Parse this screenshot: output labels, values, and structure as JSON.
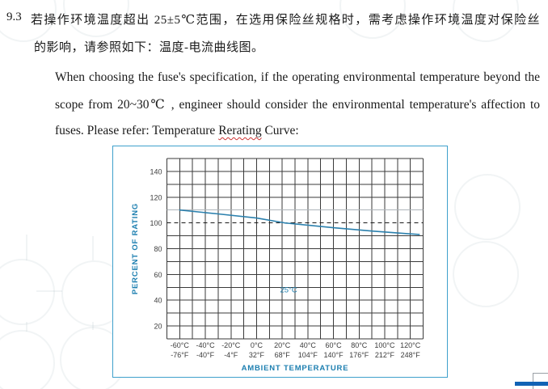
{
  "document": {
    "section_number": "9.3",
    "zh_line1": "若操作环境温度超出 25±5℃范围，在选用保险丝规格时，需考虑操作环境温度对保险丝",
    "zh_line2": "的影响，请参照如下：温度-电流曲线图。",
    "en_line1": "When choosing the fuse's specification, if the operating environmental temperature beyond the",
    "en_line2": "scope from 20~30℃ , engineer should consider the environmental temperature's affection to",
    "en_line3_prefix": "fuses. Please refer: Temperature ",
    "en_line3_spellcheck_word": "Rerating",
    "en_line3_suffix": " Curve:"
  },
  "chart_data": {
    "type": "line",
    "title": "Temperature Rerating Curve",
    "xlabel": "AMBIENT TEMPERATURE",
    "ylabel": "PERCENT OF RATING",
    "x_ticks": [
      {
        "celsius": "-60°C",
        "fahrenheit": "-76°F"
      },
      {
        "celsius": "-40°C",
        "fahrenheit": "-40°F"
      },
      {
        "celsius": "-20°C",
        "fahrenheit": "-4°F"
      },
      {
        "celsius": "0°C",
        "fahrenheit": "32°F"
      },
      {
        "celsius": "20°C",
        "fahrenheit": "68°F"
      },
      {
        "celsius": "40°C",
        "fahrenheit": "104°F"
      },
      {
        "celsius": "60°C",
        "fahrenheit": "140°F"
      },
      {
        "celsius": "80°C",
        "fahrenheit": "176°F"
      },
      {
        "celsius": "100°C",
        "fahrenheit": "212°F"
      },
      {
        "celsius": "120°C",
        "fahrenheit": "248°F"
      }
    ],
    "x_tick_celsius_values": [
      -60,
      -40,
      -20,
      0,
      20,
      40,
      60,
      80,
      100,
      120
    ],
    "y_ticks": [
      140,
      120,
      100,
      80,
      60,
      40,
      20
    ],
    "xlim_celsius": [
      -70,
      130
    ],
    "ylim": [
      10,
      150
    ],
    "grid": true,
    "grid_step_x_celsius": 10,
    "grid_step_y": 10,
    "reference_lines": [
      {
        "y": 100,
        "style": "dashed",
        "color": "#1a1a1a"
      },
      {
        "y": 110,
        "style": "solid",
        "color": "#aeb4b9"
      }
    ],
    "annotation": {
      "text": "25°C",
      "x_celsius": 25,
      "y": 46
    },
    "series": [
      {
        "name": "temperature-rerating-curve",
        "points": [
          [
            -60,
            110
          ],
          [
            -30,
            107
          ],
          [
            0,
            103.8
          ],
          [
            22,
            100
          ],
          [
            25,
            99.7
          ],
          [
            60,
            96.3
          ],
          [
            90,
            93.7
          ],
          [
            127,
            91
          ]
        ]
      }
    ],
    "colors": {
      "curve": "#2b80ad",
      "axis_title": "#1d7fb0",
      "annotation": "#1d7fb0",
      "tick_label": "#3c3c3c",
      "grid_line": "#3a3a3a",
      "box_border": "#3fa0cc"
    }
  },
  "footer": {
    "bar_color": "#1163b5"
  }
}
